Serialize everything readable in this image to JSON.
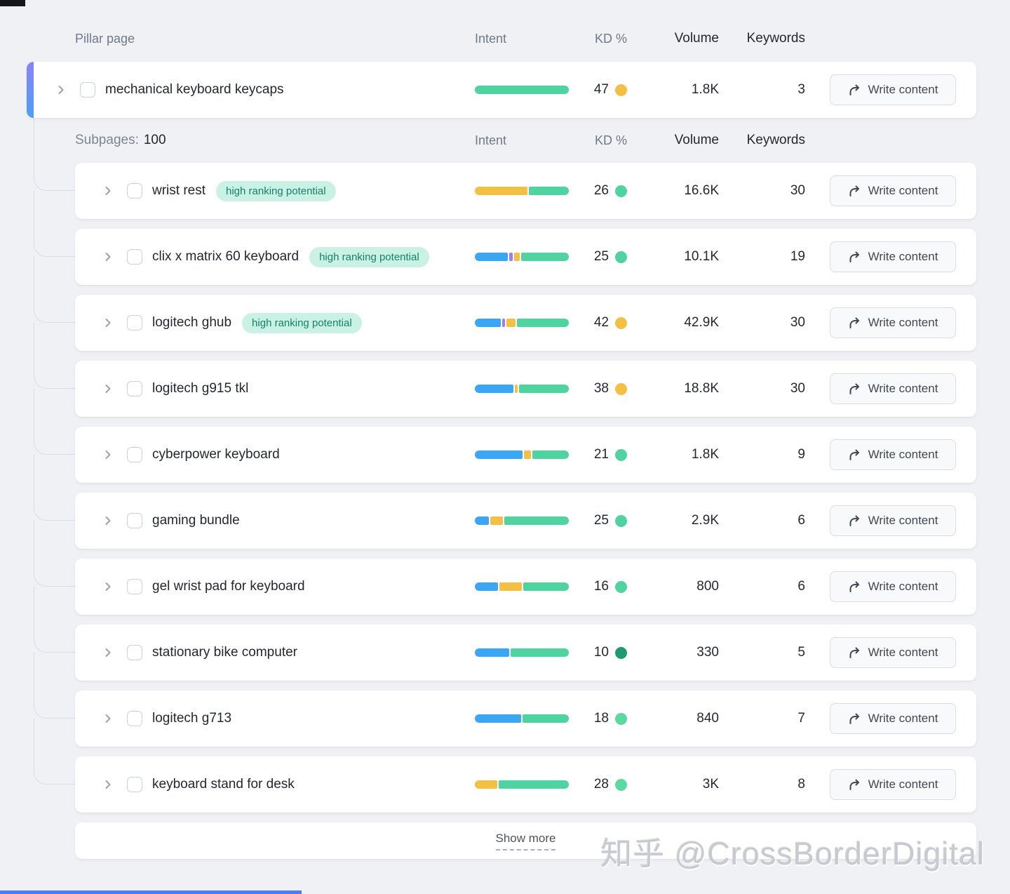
{
  "headers": {
    "pillar_page": "Pillar page",
    "intent": "Intent",
    "kd": "KD %",
    "volume": "Volume",
    "keywords": "Keywords"
  },
  "subpages": {
    "label": "Subpages:",
    "count": "100"
  },
  "labels": {
    "write_content": "Write content",
    "show_more": "Show more",
    "badge": "high ranking potential"
  },
  "pillar": {
    "title": "mechanical keyboard keycaps",
    "segments": [
      {
        "color": "green",
        "pct": 100
      }
    ],
    "kd": "47",
    "kd_dot": "yellow",
    "volume": "1.8K",
    "keywords": "3"
  },
  "rows": [
    {
      "title": "wrist rest",
      "badge": true,
      "segments": [
        {
          "color": "yellow",
          "pct": 57
        },
        {
          "color": "green",
          "pct": 43
        }
      ],
      "kd": "26",
      "kd_dot": "green",
      "volume": "16.6K",
      "keywords": "30"
    },
    {
      "title": "clix x matrix 60 keyboard",
      "badge": true,
      "segments": [
        {
          "color": "blue",
          "pct": 37
        },
        {
          "color": "purple",
          "pct": 4
        },
        {
          "color": "yellow",
          "pct": 6
        },
        {
          "color": "green",
          "pct": 53
        }
      ],
      "kd": "25",
      "kd_dot": "green",
      "volume": "10.1K",
      "keywords": "19"
    },
    {
      "title": "logitech ghub",
      "badge": true,
      "segments": [
        {
          "color": "blue",
          "pct": 29
        },
        {
          "color": "purple",
          "pct": 3
        },
        {
          "color": "yellow",
          "pct": 10
        },
        {
          "color": "green",
          "pct": 58
        }
      ],
      "kd": "42",
      "kd_dot": "yellow",
      "volume": "42.9K",
      "keywords": "30"
    },
    {
      "title": "logitech g915 tkl",
      "badge": false,
      "segments": [
        {
          "color": "blue",
          "pct": 42
        },
        {
          "color": "yellow",
          "pct": 3
        },
        {
          "color": "green",
          "pct": 55
        }
      ],
      "kd": "38",
      "kd_dot": "yellow",
      "volume": "18.8K",
      "keywords": "30"
    },
    {
      "title": "cyberpower keyboard",
      "badge": false,
      "segments": [
        {
          "color": "blue",
          "pct": 52
        },
        {
          "color": "yellow",
          "pct": 8
        },
        {
          "color": "green",
          "pct": 40
        }
      ],
      "kd": "21",
      "kd_dot": "green",
      "volume": "1.8K",
      "keywords": "9"
    },
    {
      "title": "gaming bundle",
      "badge": false,
      "segments": [
        {
          "color": "blue",
          "pct": 15
        },
        {
          "color": "yellow",
          "pct": 14
        },
        {
          "color": "green",
          "pct": 71
        }
      ],
      "kd": "25",
      "kd_dot": "green",
      "volume": "2.9K",
      "keywords": "6"
    },
    {
      "title": "gel wrist pad for keyboard",
      "badge": false,
      "segments": [
        {
          "color": "blue",
          "pct": 25
        },
        {
          "color": "yellow",
          "pct": 25
        },
        {
          "color": "green",
          "pct": 50
        }
      ],
      "kd": "16",
      "kd_dot": "green",
      "volume": "800",
      "keywords": "6"
    },
    {
      "title": "stationary bike computer",
      "badge": false,
      "segments": [
        {
          "color": "blue",
          "pct": 37
        },
        {
          "color": "green",
          "pct": 63
        }
      ],
      "kd": "10",
      "kd_dot": "green_dark",
      "volume": "330",
      "keywords": "5"
    },
    {
      "title": "logitech g713",
      "badge": false,
      "segments": [
        {
          "color": "blue",
          "pct": 50
        },
        {
          "color": "green",
          "pct": 50
        }
      ],
      "kd": "18",
      "kd_dot": "green_light",
      "volume": "840",
      "keywords": "7"
    },
    {
      "title": "keyboard stand for desk",
      "badge": false,
      "segments": [
        {
          "color": "yellow",
          "pct": 24
        },
        {
          "color": "green",
          "pct": 76
        }
      ],
      "kd": "28",
      "kd_dot": "green_light",
      "volume": "3K",
      "keywords": "8"
    }
  ],
  "watermark": "知乎 @CrossBorderDigital",
  "colors": {
    "blue": "#3BA7F4",
    "purple": "#A07CF2",
    "yellow": "#F3C043",
    "green": "#4FD3A0",
    "green_dark": "#1E9C6F",
    "green_light": "#5BDA9F",
    "badge_bg": "#C9F2E4",
    "badge_text": "#15806A",
    "accent_top": "#8B82F3",
    "accent_bottom": "#4AA0F7",
    "tree_line": "#D8DCE3"
  }
}
